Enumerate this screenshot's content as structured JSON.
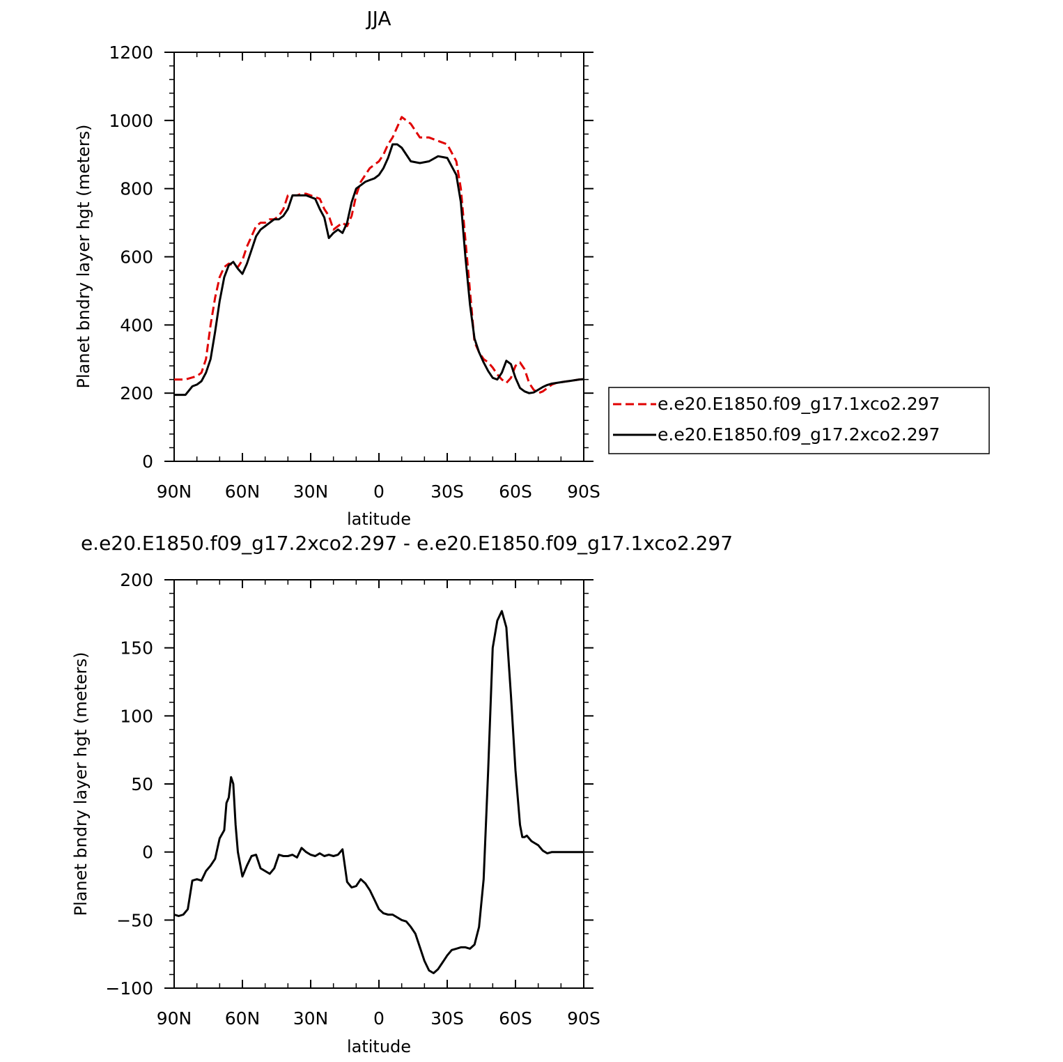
{
  "chart_data": [
    {
      "type": "line",
      "title": "JJA",
      "xlabel": "latitude",
      "ylabel": "Planet bndry layer hgt (meters)",
      "xlim": [
        90,
        -90
      ],
      "ylim": [
        0,
        1200
      ],
      "x_ticks": [
        90,
        60,
        30,
        0,
        -30,
        -60,
        -90
      ],
      "x_tick_labels": [
        "90N",
        "60N",
        "30N",
        "0",
        "30S",
        "60S",
        "90S"
      ],
      "y_ticks": [
        0,
        200,
        400,
        600,
        800,
        1000,
        1200
      ],
      "y_tick_labels": [
        "0",
        "200",
        "400",
        "600",
        "800",
        "1000",
        "1200"
      ],
      "grid": false,
      "legend_position": "right",
      "series": [
        {
          "name": "e.e20.E1850.f09_g17.1xco2.297",
          "color": "#e00000",
          "dash": "dashed",
          "x": [
            90,
            85,
            80,
            78,
            76,
            74,
            72,
            70,
            68,
            66,
            64,
            62,
            60,
            58,
            56,
            54,
            52,
            50,
            48,
            46,
            44,
            42,
            40,
            38,
            36,
            34,
            32,
            30,
            28,
            26,
            24,
            22,
            20,
            18,
            16,
            14,
            12,
            10,
            8,
            6,
            4,
            2,
            0,
            -2,
            -4,
            -6,
            -8,
            -10,
            -14,
            -18,
            -22,
            -26,
            -30,
            -34,
            -36,
            -38,
            -40,
            -42,
            -44,
            -46,
            -48,
            -50,
            -52,
            -54,
            -56,
            -58,
            -60,
            -62,
            -64,
            -66,
            -68,
            -70,
            -72,
            -74,
            -76,
            -78,
            -80,
            -82,
            -84,
            -86,
            -88,
            -90
          ],
          "y": [
            240,
            240,
            250,
            260,
            300,
            400,
            480,
            540,
            570,
            580,
            575,
            570,
            590,
            630,
            660,
            690,
            700,
            700,
            710,
            710,
            720,
            740,
            780,
            780,
            780,
            785,
            785,
            780,
            775,
            770,
            740,
            720,
            680,
            690,
            700,
            690,
            720,
            780,
            820,
            840,
            860,
            870,
            880,
            900,
            930,
            950,
            980,
            1010,
            990,
            950,
            950,
            940,
            930,
            880,
            800,
            650,
            500,
            350,
            320,
            300,
            290,
            275,
            255,
            240,
            230,
            245,
            280,
            290,
            270,
            230,
            210,
            200,
            205,
            215,
            225,
            230,
            232,
            234,
            236,
            238,
            240,
            241
          ],
          "values_note": ""
        },
        {
          "name": "e.e20.E1850.f09_g17.2xco2.297",
          "color": "#000000",
          "dash": "solid",
          "x": [
            90,
            85,
            82,
            80,
            78,
            76,
            74,
            72,
            70,
            68,
            66,
            64,
            62,
            60,
            58,
            56,
            54,
            52,
            50,
            48,
            46,
            44,
            42,
            40,
            38,
            36,
            34,
            32,
            30,
            28,
            26,
            24,
            22,
            20,
            18,
            16,
            14,
            12,
            10,
            8,
            6,
            4,
            2,
            0,
            -2,
            -4,
            -6,
            -8,
            -10,
            -14,
            -18,
            -22,
            -26,
            -30,
            -34,
            -36,
            -38,
            -40,
            -42,
            -44,
            -46,
            -48,
            -50,
            -52,
            -54,
            -56,
            -58,
            -60,
            -62,
            -64,
            -66,
            -68,
            -70,
            -72,
            -74,
            -76,
            -78,
            -80,
            -82,
            -84,
            -86,
            -88,
            -90
          ],
          "y": [
            195,
            195,
            220,
            225,
            235,
            260,
            300,
            380,
            470,
            540,
            575,
            585,
            565,
            550,
            580,
            620,
            660,
            680,
            690,
            700,
            710,
            710,
            720,
            740,
            780,
            780,
            780,
            780,
            775,
            770,
            740,
            715,
            655,
            670,
            680,
            670,
            700,
            760,
            800,
            810,
            820,
            825,
            830,
            840,
            860,
            890,
            930,
            930,
            920,
            880,
            875,
            880,
            895,
            890,
            840,
            760,
            600,
            460,
            360,
            320,
            290,
            265,
            245,
            240,
            260,
            295,
            285,
            245,
            215,
            205,
            200,
            202,
            210,
            218,
            224,
            228,
            230,
            232,
            234,
            236,
            238,
            240,
            241
          ]
        }
      ]
    },
    {
      "type": "line",
      "title": "e.e20.E1850.f09_g17.2xco2.297 - e.e20.E1850.f09_g17.1xco2.297",
      "xlabel": "latitude",
      "ylabel": "Planet bndry layer hgt (meters)",
      "xlim": [
        90,
        -90
      ],
      "ylim": [
        -100,
        200
      ],
      "x_ticks": [
        90,
        60,
        30,
        0,
        -30,
        -60,
        -90
      ],
      "x_tick_labels": [
        "90N",
        "60N",
        "30N",
        "0",
        "30S",
        "60S",
        "90S"
      ],
      "y_ticks": [
        -100,
        -50,
        0,
        50,
        100,
        150,
        200
      ],
      "y_tick_labels": [
        "−100",
        "−50",
        "0",
        "50",
        "100",
        "150",
        "200"
      ],
      "grid": false,
      "series": [
        {
          "name": "",
          "color": "#000000",
          "dash": "solid",
          "x": [
            90,
            88,
            86,
            84,
            82,
            80,
            78,
            76,
            74,
            72,
            70,
            68,
            67,
            66,
            65,
            64,
            63,
            62,
            60,
            58,
            56,
            54,
            52,
            50,
            48,
            46,
            44,
            42,
            40,
            38,
            36,
            34,
            32,
            30,
            28,
            26,
            24,
            22,
            20,
            18,
            16,
            14,
            12,
            10,
            8,
            6,
            4,
            2,
            0,
            -2,
            -4,
            -6,
            -8,
            -10,
            -12,
            -14,
            -16,
            -18,
            -20,
            -22,
            -24,
            -26,
            -28,
            -30,
            -32,
            -34,
            -36,
            -38,
            -40,
            -42,
            -44,
            -46,
            -48,
            -50,
            -52,
            -54,
            -56,
            -58,
            -60,
            -62,
            -63,
            -64,
            -65,
            -66,
            -67,
            -68,
            -70,
            -72,
            -74,
            -76,
            -78,
            -80,
            -82,
            -84,
            -86,
            -88,
            -90
          ],
          "y": [
            -46,
            -47,
            -46,
            -42,
            -21,
            -20,
            -21,
            -14,
            -10,
            -5,
            10,
            16,
            36,
            40,
            55,
            50,
            20,
            0,
            -18,
            -10,
            -3,
            -2,
            -12,
            -14,
            -16,
            -12,
            -2,
            -3,
            -3,
            -2,
            -4,
            3,
            0,
            -2,
            -3,
            -1,
            -3,
            -2,
            -3,
            -2,
            2,
            -22,
            -26,
            -25,
            -20,
            -23,
            -28,
            -35,
            -42,
            -45,
            -46,
            -46,
            -48,
            -50,
            -51,
            -55,
            -60,
            -70,
            -80,
            -87,
            -89,
            -86,
            -81,
            -76,
            -72,
            -71,
            -70,
            -70,
            -71,
            -68,
            -55,
            -20,
            60,
            150,
            170,
            177,
            165,
            115,
            60,
            20,
            11,
            11,
            12,
            10,
            8,
            7,
            5,
            1,
            -1,
            0,
            0,
            0,
            0,
            0,
            0,
            0,
            0
          ]
        }
      ]
    }
  ]
}
